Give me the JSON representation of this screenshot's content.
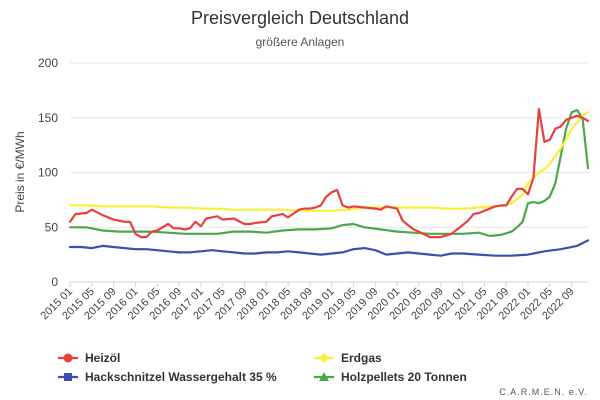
{
  "chart_data": {
    "type": "line",
    "title": "Preisvergleich Deutschland",
    "subtitle": "größere Anlagen",
    "xlabel": "",
    "ylabel": "Preis in €/MWh",
    "ylim": [
      0,
      200
    ],
    "yticks": [
      0,
      50,
      100,
      150,
      200
    ],
    "xlim": [
      2015.0,
      2022.917
    ],
    "xtick_labels": [
      "2015 01",
      "2015 05",
      "2015 09",
      "2016 01",
      "2016 05",
      "2016 09",
      "2017 01",
      "2017 05",
      "2017 09",
      "2018 01",
      "2018 05",
      "2018 09",
      "2019 01",
      "2019 05",
      "2019 09",
      "2020 01",
      "2020 05",
      "2020 09",
      "2021 01",
      "2021 05",
      "2021 09",
      "2022 01",
      "2022 05",
      "2022 09"
    ],
    "grid": true,
    "legend": "bottom-left",
    "credits": "C.A.R.M.E.N. e.V.",
    "series": [
      {
        "name": "Heizöl",
        "color": "#e8413c",
        "marker": "circle",
        "x": [
          2015.0,
          2015.083,
          2015.25,
          2015.333,
          2015.5,
          2015.667,
          2015.75,
          2015.833,
          2015.917,
          2016.0,
          2016.083,
          2016.167,
          2016.25,
          2016.333,
          2016.5,
          2016.583,
          2016.667,
          2016.75,
          2016.833,
          2016.917,
          2017.0,
          2017.083,
          2017.167,
          2017.25,
          2017.333,
          2017.5,
          2017.667,
          2017.75,
          2017.833,
          2018.0,
          2018.083,
          2018.167,
          2018.25,
          2018.333,
          2018.5,
          2018.583,
          2018.667,
          2018.75,
          2018.833,
          2018.917,
          2019.0,
          2019.083,
          2019.167,
          2019.25,
          2019.333,
          2019.5,
          2019.667,
          2019.75,
          2019.833,
          2020.0,
          2020.083,
          2020.167,
          2020.25,
          2020.333,
          2020.5,
          2020.667,
          2020.833,
          2021.0,
          2021.083,
          2021.167,
          2021.25,
          2021.333,
          2021.5,
          2021.583,
          2021.667,
          2021.75,
          2021.833,
          2021.917,
          2022.0,
          2022.083,
          2022.167,
          2022.25,
          2022.333,
          2022.417,
          2022.5,
          2022.583,
          2022.667,
          2022.75,
          2022.833,
          2022.917
        ],
        "y": [
          55,
          62,
          63,
          66,
          61,
          57,
          56,
          55,
          55,
          44,
          41,
          41,
          46,
          47,
          53,
          49,
          49,
          48,
          49,
          55,
          51,
          58,
          59,
          60,
          57,
          58,
          53,
          53,
          54,
          55,
          60,
          61,
          62,
          59,
          66,
          67,
          67,
          68,
          70,
          78,
          82,
          84,
          70,
          68,
          69,
          68,
          67,
          66,
          69,
          67,
          56,
          52,
          48,
          46,
          41,
          41,
          44,
          52,
          56,
          62,
          63,
          65,
          69,
          70,
          70,
          78,
          85,
          85,
          80,
          95,
          158,
          128,
          130,
          140,
          142,
          148,
          150,
          152,
          150,
          147
        ]
      },
      {
        "name": "Erdgas",
        "color": "#f7f03b",
        "marker": "diamond",
        "x": [
          2015.0,
          2015.25,
          2015.5,
          2015.75,
          2016.0,
          2016.25,
          2016.5,
          2016.75,
          2017.0,
          2017.25,
          2017.5,
          2017.75,
          2018.0,
          2018.25,
          2018.5,
          2018.75,
          2019.0,
          2019.25,
          2019.5,
          2019.75,
          2020.0,
          2020.25,
          2020.5,
          2020.75,
          2021.0,
          2021.25,
          2021.5,
          2021.667,
          2021.75,
          2021.833,
          2021.917,
          2022.0,
          2022.083,
          2022.167,
          2022.25,
          2022.333,
          2022.417,
          2022.5,
          2022.583,
          2022.667,
          2022.75,
          2022.833,
          2022.917
        ],
        "y": [
          70,
          70,
          69,
          69,
          69,
          69,
          68,
          68,
          67,
          67,
          66,
          66,
          66,
          66,
          65,
          65,
          65,
          66,
          68,
          68,
          68,
          68,
          68,
          67,
          67,
          68,
          69,
          70,
          72,
          76,
          80,
          90,
          95,
          100,
          103,
          108,
          115,
          122,
          130,
          140,
          146,
          152,
          155
        ]
      },
      {
        "name": "Hackschnitzel Wassergehalt 35 %",
        "color": "#3b4fb0",
        "marker": "square",
        "x": [
          2015.0,
          2015.167,
          2015.333,
          2015.5,
          2015.667,
          2015.833,
          2016.0,
          2016.167,
          2016.333,
          2016.5,
          2016.667,
          2016.833,
          2017.0,
          2017.167,
          2017.333,
          2017.5,
          2017.667,
          2017.833,
          2018.0,
          2018.167,
          2018.333,
          2018.5,
          2018.667,
          2018.833,
          2019.0,
          2019.167,
          2019.333,
          2019.5,
          2019.667,
          2019.833,
          2020.0,
          2020.167,
          2020.333,
          2020.5,
          2020.667,
          2020.833,
          2021.0,
          2021.25,
          2021.5,
          2021.75,
          2022.0,
          2022.25,
          2022.5,
          2022.75,
          2022.917
        ],
        "y": [
          32,
          32,
          31,
          33,
          32,
          31,
          30,
          30,
          29,
          28,
          27,
          27,
          28,
          29,
          28,
          27,
          26,
          26,
          27,
          27,
          28,
          27,
          26,
          25,
          26,
          27,
          30,
          31,
          29,
          25,
          26,
          27,
          26,
          25,
          24,
          26,
          26,
          25,
          24,
          24,
          25,
          28,
          30,
          33,
          38
        ]
      },
      {
        "name": "Holzpellets 20 Tonnen",
        "color": "#4ca64c",
        "marker": "triangle",
        "x": [
          2015.0,
          2015.25,
          2015.5,
          2015.75,
          2016.0,
          2016.25,
          2016.5,
          2016.75,
          2017.0,
          2017.25,
          2017.5,
          2017.75,
          2018.0,
          2018.25,
          2018.5,
          2018.75,
          2019.0,
          2019.167,
          2019.333,
          2019.5,
          2019.75,
          2020.0,
          2020.25,
          2020.5,
          2020.75,
          2021.0,
          2021.25,
          2021.417,
          2021.583,
          2021.75,
          2021.833,
          2021.917,
          2022.0,
          2022.083,
          2022.167,
          2022.25,
          2022.333,
          2022.417,
          2022.5,
          2022.583,
          2022.667,
          2022.75,
          2022.833,
          2022.917
        ],
        "y": [
          50,
          50,
          47,
          46,
          46,
          46,
          45,
          44,
          44,
          44,
          46,
          46,
          45,
          47,
          48,
          48,
          49,
          52,
          53,
          50,
          48,
          46,
          45,
          44,
          44,
          44,
          45,
          42,
          43,
          46,
          50,
          55,
          72,
          73,
          72,
          74,
          78,
          90,
          115,
          140,
          155,
          157,
          150,
          104
        ]
      }
    ]
  }
}
